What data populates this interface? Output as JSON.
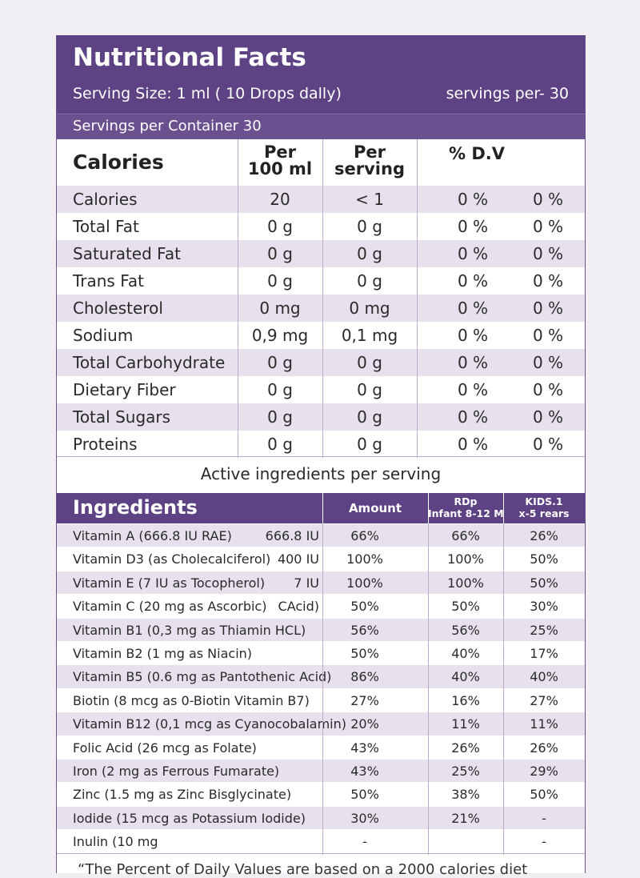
{
  "header": {
    "title": "Nutritional Facts",
    "serving_size": "Serving Size: 1 ml ( 10 Drops dally)",
    "servings_per": "servings  per- 30",
    "servings_per_container": "Servings per Container  30"
  },
  "nutrition_table": {
    "headers": {
      "label": "Calories",
      "per100_line1": "Per",
      "per100_line2": "100 ml",
      "perserv_line1": "Per",
      "perserv_line2": "serving",
      "dv": "% D.V"
    },
    "rows": [
      {
        "name": "Calories",
        "per100": "20",
        "perserv": "< 1",
        "dv1": "0 %",
        "dv2": "0 %"
      },
      {
        "name": "Total Fat",
        "per100": "0 g",
        "perserv": "0 g",
        "dv1": "0 %",
        "dv2": "0 %"
      },
      {
        "name": "Saturated Fat",
        "per100": "0 g",
        "perserv": "0 g",
        "dv1": "0 %",
        "dv2": "0 %"
      },
      {
        "name": "Trans Fat",
        "per100": "0 g",
        "perserv": "0 g",
        "dv1": "0 %",
        "dv2": "0 %"
      },
      {
        "name": "Cholesterol",
        "per100": "0 mg",
        "perserv": "0 mg",
        "dv1": "0 %",
        "dv2": "0 %"
      },
      {
        "name": "Sodium",
        "per100": "0,9 mg",
        "perserv": "0,1 mg",
        "dv1": "0 %",
        "dv2": "0 %"
      },
      {
        "name": "Total Carbohydrate",
        "per100": "0 g",
        "perserv": "0 g",
        "dv1": "0 %",
        "dv2": "0 %"
      },
      {
        "name": "Dietary Fiber",
        "per100": "0 g",
        "perserv": "0 g",
        "dv1": "0 %",
        "dv2": "0 %"
      },
      {
        "name": "Total Sugars",
        "per100": "0 g",
        "perserv": "0 g",
        "dv1": "0 %",
        "dv2": "0 %"
      },
      {
        "name": "Proteins",
        "per100": "0 g",
        "perserv": "0 g",
        "dv1": "0 %",
        "dv2": "0 %"
      }
    ]
  },
  "active_title": "Active ingredients per serving",
  "ingredients_table": {
    "headers": {
      "name": "Ingredients",
      "amount": "Amount",
      "rdp_line1": "RDp",
      "rdp_line2": "Infant 8-12 M",
      "kids_line1": "KIDS.1",
      "kids_line2": "x-5 rears"
    },
    "rows": [
      {
        "name": "Vitamin A (666.8 IU RAE)",
        "dose": "666.8 IU",
        "amount": "66%",
        "rdp": "66%",
        "kids": "26%"
      },
      {
        "name": "Vitamin D3 (as Cholecalciferol)",
        "dose": "400 IU",
        "amount": "100%",
        "rdp": "100%",
        "kids": "50%"
      },
      {
        "name": "Vitamin E (7 IU as Tocopherol)",
        "dose": "7 IU",
        "amount": "100%",
        "rdp": "100%",
        "kids": "50%"
      },
      {
        "name": "Vitamin C (20 mg as Ascorbic)",
        "dose": "CAcid)",
        "amount": "50%",
        "rdp": "50%",
        "kids": "30%"
      },
      {
        "name": "Vitamin B1 (0,3 mg as Thiamin HCL)",
        "dose": "",
        "amount": "56%",
        "rdp": "56%",
        "kids": "25%"
      },
      {
        "name": "Vitamin B2 (1 mg as Niacin)",
        "dose": "",
        "amount": "50%",
        "rdp": "40%",
        "kids": "17%"
      },
      {
        "name": "Vitamin B5 (0.6 mg as Pantothenic Acid)",
        "dose": "",
        "amount": "86%",
        "rdp": "40%",
        "kids": "40%"
      },
      {
        "name": "Biotin (8 mcg as 0-Biotin Vitamin B7)",
        "dose": "",
        "amount": "27%",
        "rdp": "16%",
        "kids": "27%"
      },
      {
        "name": "Vitamin B12 (0,1 mcg as Cyanocobalamin)",
        "dose": "",
        "amount": "20%",
        "rdp": "11%",
        "kids": "11%"
      },
      {
        "name": "Folic Acid (26 mcg as Folate)",
        "dose": "",
        "amount": "43%",
        "rdp": "26%",
        "kids": "26%"
      },
      {
        "name": "Iron (2 mg as Ferrous Fumarate)",
        "dose": "",
        "amount": "43%",
        "rdp": "25%",
        "kids": "29%"
      },
      {
        "name": "Zinc (1.5 mg as Zinc Bisglycinate)",
        "dose": "",
        "amount": "50%",
        "rdp": "38%",
        "kids": "50%"
      },
      {
        "name": "Iodide (15 mcg as Potassium Iodide)",
        "dose": "",
        "amount": "30%",
        "rdp": "21%",
        "kids": "-"
      },
      {
        "name": "Inulin (10 mg",
        "dose": "",
        "amount": "-",
        "rdp": "",
        "kids": "-"
      }
    ]
  },
  "footnote": "“The Percent of Daily Values are based on a 2000 calories diet",
  "colors": {
    "header_purple": "#5e4384",
    "row_alt": "#e7e1ee"
  }
}
